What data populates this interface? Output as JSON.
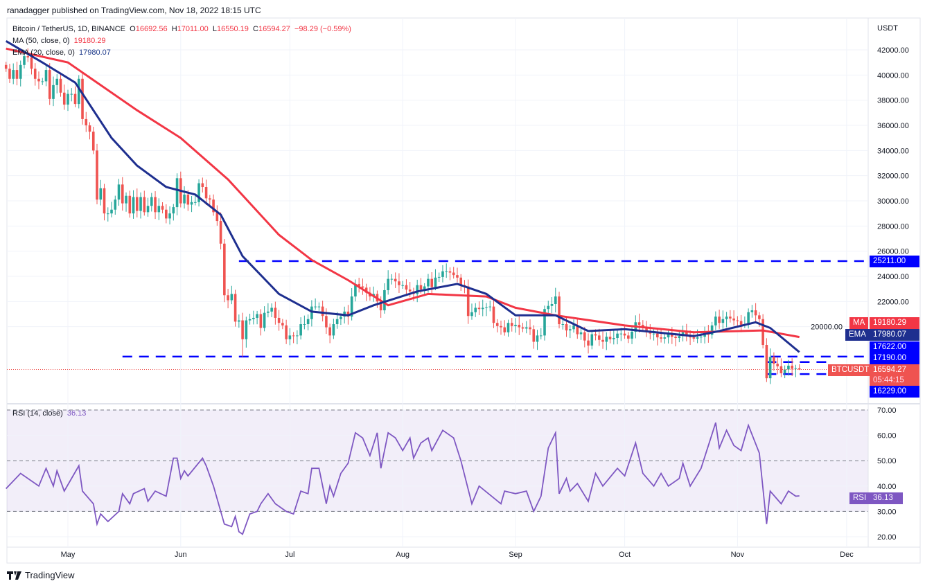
{
  "header": {
    "published": "ranadagger published on TradingView.com, Nov 18, 2022 18:15 UTC"
  },
  "legend": {
    "symbol": "Bitcoin / TetherUS, 1D, BINANCE",
    "o_label": "O",
    "o": "16692.56",
    "h_label": "H",
    "h": "17011.00",
    "l_label": "L",
    "l": "16550.19",
    "c_label": "C",
    "c": "16594.27",
    "change": "−98.29 (−0.59%)",
    "ma_label": "MA (50, close, 0)",
    "ma_value": "19180.29",
    "ema_label": "EMA (20, close, 0)",
    "ema_value": "17980.07",
    "rsi_label": "RSI (14, close)",
    "rsi_value": "36.13"
  },
  "axis": {
    "currency": "USDT",
    "price_ticks": [
      42000,
      40000,
      38000,
      36000,
      34000,
      32000,
      30000,
      28000,
      26000,
      24000,
      22000,
      20000
    ],
    "rsi_ticks": [
      70,
      60,
      50,
      40,
      30,
      20
    ],
    "months": [
      "May",
      "Jun",
      "Jul",
      "Aug",
      "Sep",
      "Oct",
      "Nov",
      "Dec"
    ]
  },
  "tags": {
    "ma_name": "MA",
    "ma": "19180.29",
    "ema_name": "EMA",
    "ema": "17980.07",
    "l1": "17622.00",
    "l2": "17190.00",
    "sym": "BTCUSDT",
    "price": "16594.27",
    "countdown": "05:44:15",
    "l3": "16229.00",
    "top": "25211.00",
    "rsi_name": "RSI",
    "rsi": "36.13"
  },
  "brand": "TradingView",
  "colors": {
    "up": "#26a69a",
    "down": "#ef5350",
    "ma": "#f23645",
    "ema": "#1e2f8f",
    "level": "#0000ff",
    "rsi": "#7e57c2"
  },
  "chart_data": {
    "type": "candlestick",
    "title": "Bitcoin / TetherUS, 1D, BINANCE",
    "start_date": "2022-04-14",
    "ylim": [
      15000,
      43500
    ],
    "closes": [
      40500,
      39700,
      40400,
      39700,
      40800,
      41500,
      41400,
      40500,
      39700,
      39500,
      39500,
      40400,
      38100,
      39200,
      39700,
      38600,
      37650,
      38500,
      38500,
      37700,
      39700,
      36500,
      36000,
      35500,
      34000,
      30100,
      31000,
      29000,
      29000,
      29300,
      30100,
      31300,
      29800,
      30400,
      29000,
      30300,
      29200,
      30300,
      29100,
      29600,
      30300,
      29100,
      29600,
      29300,
      28600,
      29000,
      29500,
      31800,
      29800,
      30500,
      29700,
      29900,
      29900,
      31400,
      31100,
      30200,
      30100,
      29100,
      28400,
      26600,
      22500,
      22100,
      22600,
      20400,
      20500,
      19000,
      20500,
      20600,
      20700,
      21000,
      19900,
      21100,
      21200,
      21500,
      20700,
      20300,
      20100,
      19000,
      19300,
      19250,
      19300,
      20200,
      20200,
      20600,
      21600,
      21600,
      21600,
      20850,
      19950,
      19300,
      20200,
      20600,
      20800,
      21200,
      20800,
      22400,
      23400,
      23200,
      23100,
      22700,
      22400,
      22600,
      22000,
      21300,
      22900,
      23800,
      23800,
      23600,
      23300,
      23300,
      22950,
      22800,
      22600,
      23300,
      22950,
      23200,
      23800,
      23150,
      23900,
      23950,
      24400,
      24400,
      24300,
      24100,
      23900,
      23300,
      23200,
      20850,
      21150,
      21500,
      21400,
      21500,
      21550,
      21600,
      20300,
      20050,
      19950,
      19550,
      20300,
      20050,
      20150,
      19950,
      19850,
      19950,
      19800,
      18800,
      19300,
      19300,
      21400,
      21650,
      21800,
      22400,
      20200,
      20200,
      19700,
      19800,
      20100,
      19400,
      19550,
      18900,
      18500,
      19400,
      19300,
      18950,
      18800,
      19200,
      19000,
      19100,
      19450,
      19450,
      19300,
      19050,
      19600,
      20350,
      20150,
      19950,
      19550,
      19450,
      19450,
      19150,
      19050,
      19150,
      19400,
      19200,
      19100,
      19250,
      19550,
      19350,
      19150,
      19050,
      19150,
      19200,
      19550,
      19350,
      20100,
      20800,
      20300,
      20600,
      20800,
      20650,
      20500,
      20450,
      20150,
      20200,
      21150,
      21300,
      20900,
      20600,
      18550,
      15900,
      17600,
      17050,
      16850,
      16300,
      16600,
      16900,
      16650,
      16692.56,
      16594.27
    ],
    "ma50": [
      [
        0,
        42100
      ],
      [
        17,
        41000
      ],
      [
        36,
        37200
      ],
      [
        48,
        35000
      ],
      [
        61,
        31700
      ],
      [
        75,
        27300
      ],
      [
        84,
        25300
      ],
      [
        94,
        23700
      ],
      [
        105,
        21700
      ],
      [
        116,
        22600
      ],
      [
        132,
        22400
      ],
      [
        140,
        21500
      ],
      [
        151,
        20900
      ],
      [
        170,
        20100
      ],
      [
        189,
        19550
      ],
      [
        208,
        19700
      ],
      [
        218,
        19180.29
      ]
    ],
    "ema20": [
      [
        0,
        42700
      ],
      [
        10,
        41000
      ],
      [
        19,
        39400
      ],
      [
        29,
        35000
      ],
      [
        36,
        32800
      ],
      [
        44,
        31100
      ],
      [
        52,
        30500
      ],
      [
        59,
        28900
      ],
      [
        65,
        25600
      ],
      [
        75,
        22600
      ],
      [
        84,
        21200
      ],
      [
        94,
        20900
      ],
      [
        101,
        21700
      ],
      [
        113,
        22800
      ],
      [
        124,
        23400
      ],
      [
        132,
        22600
      ],
      [
        140,
        20900
      ],
      [
        151,
        20900
      ],
      [
        160,
        19650
      ],
      [
        170,
        19800
      ],
      [
        189,
        19250
      ],
      [
        196,
        19650
      ],
      [
        206,
        20350
      ],
      [
        210,
        19900
      ],
      [
        218,
        17980.07
      ]
    ],
    "levels": [
      {
        "value": 25211,
        "from_day": 64
      },
      {
        "value": 17622,
        "from_day": 32
      },
      {
        "value": 17190,
        "from_day": 209
      },
      {
        "value": 16229,
        "from_day": 209
      }
    ],
    "rsi": [
      [
        0,
        39
      ],
      [
        4,
        45
      ],
      [
        9,
        40
      ],
      [
        11,
        47
      ],
      [
        13,
        40
      ],
      [
        14,
        46
      ],
      [
        16,
        38
      ],
      [
        20,
        48
      ],
      [
        21,
        38
      ],
      [
        24,
        33
      ],
      [
        25,
        25
      ],
      [
        26,
        29
      ],
      [
        28,
        26
      ],
      [
        31,
        30
      ],
      [
        32,
        37
      ],
      [
        34,
        33
      ],
      [
        35,
        37
      ],
      [
        38,
        39
      ],
      [
        39,
        34
      ],
      [
        41,
        38
      ],
      [
        44,
        36
      ],
      [
        46,
        51
      ],
      [
        47,
        51
      ],
      [
        48,
        43
      ],
      [
        49,
        46
      ],
      [
        50,
        44
      ],
      [
        54,
        51
      ],
      [
        55,
        48
      ],
      [
        57,
        40
      ],
      [
        60,
        25
      ],
      [
        62,
        24
      ],
      [
        63,
        28
      ],
      [
        64,
        22
      ],
      [
        65,
        21
      ],
      [
        67,
        29
      ],
      [
        69,
        30
      ],
      [
        70,
        33
      ],
      [
        72,
        37
      ],
      [
        74,
        33
      ],
      [
        77,
        30
      ],
      [
        79,
        29
      ],
      [
        81,
        38
      ],
      [
        83,
        37
      ],
      [
        84,
        47
      ],
      [
        86,
        47
      ],
      [
        88,
        33
      ],
      [
        89,
        40
      ],
      [
        90,
        36
      ],
      [
        92,
        45
      ],
      [
        94,
        49
      ],
      [
        96,
        61
      ],
      [
        98,
        59
      ],
      [
        100,
        52
      ],
      [
        102,
        61
      ],
      [
        103,
        47
      ],
      [
        105,
        61
      ],
      [
        107,
        59
      ],
      [
        109,
        54
      ],
      [
        111,
        59
      ],
      [
        112,
        51
      ],
      [
        114,
        57
      ],
      [
        116,
        59
      ],
      [
        117,
        54
      ],
      [
        120,
        62
      ],
      [
        123,
        59
      ],
      [
        125,
        50
      ],
      [
        128,
        33
      ],
      [
        130,
        40
      ],
      [
        136,
        33
      ],
      [
        137,
        38
      ],
      [
        140,
        37
      ],
      [
        143,
        38
      ],
      [
        145,
        30
      ],
      [
        147,
        36
      ],
      [
        149,
        55
      ],
      [
        150,
        58
      ],
      [
        151,
        61
      ],
      [
        152,
        37
      ],
      [
        154,
        43
      ],
      [
        155,
        38
      ],
      [
        157,
        41
      ],
      [
        160,
        34
      ],
      [
        162,
        45
      ],
      [
        164,
        40
      ],
      [
        168,
        47
      ],
      [
        170,
        44
      ],
      [
        173,
        57
      ],
      [
        175,
        45
      ],
      [
        178,
        40
      ],
      [
        180,
        45
      ],
      [
        182,
        40
      ],
      [
        185,
        43
      ],
      [
        186,
        49
      ],
      [
        188,
        40
      ],
      [
        191,
        47
      ],
      [
        193,
        56
      ],
      [
        195,
        65
      ],
      [
        196,
        55
      ],
      [
        198,
        62
      ],
      [
        200,
        56
      ],
      [
        202,
        54
      ],
      [
        204,
        64
      ],
      [
        207,
        53
      ],
      [
        209,
        25
      ],
      [
        210,
        38
      ],
      [
        213,
        33
      ],
      [
        215,
        38
      ],
      [
        217,
        36
      ],
      [
        218,
        36.13
      ]
    ],
    "rsi_levels": [
      70,
      50,
      30
    ]
  }
}
